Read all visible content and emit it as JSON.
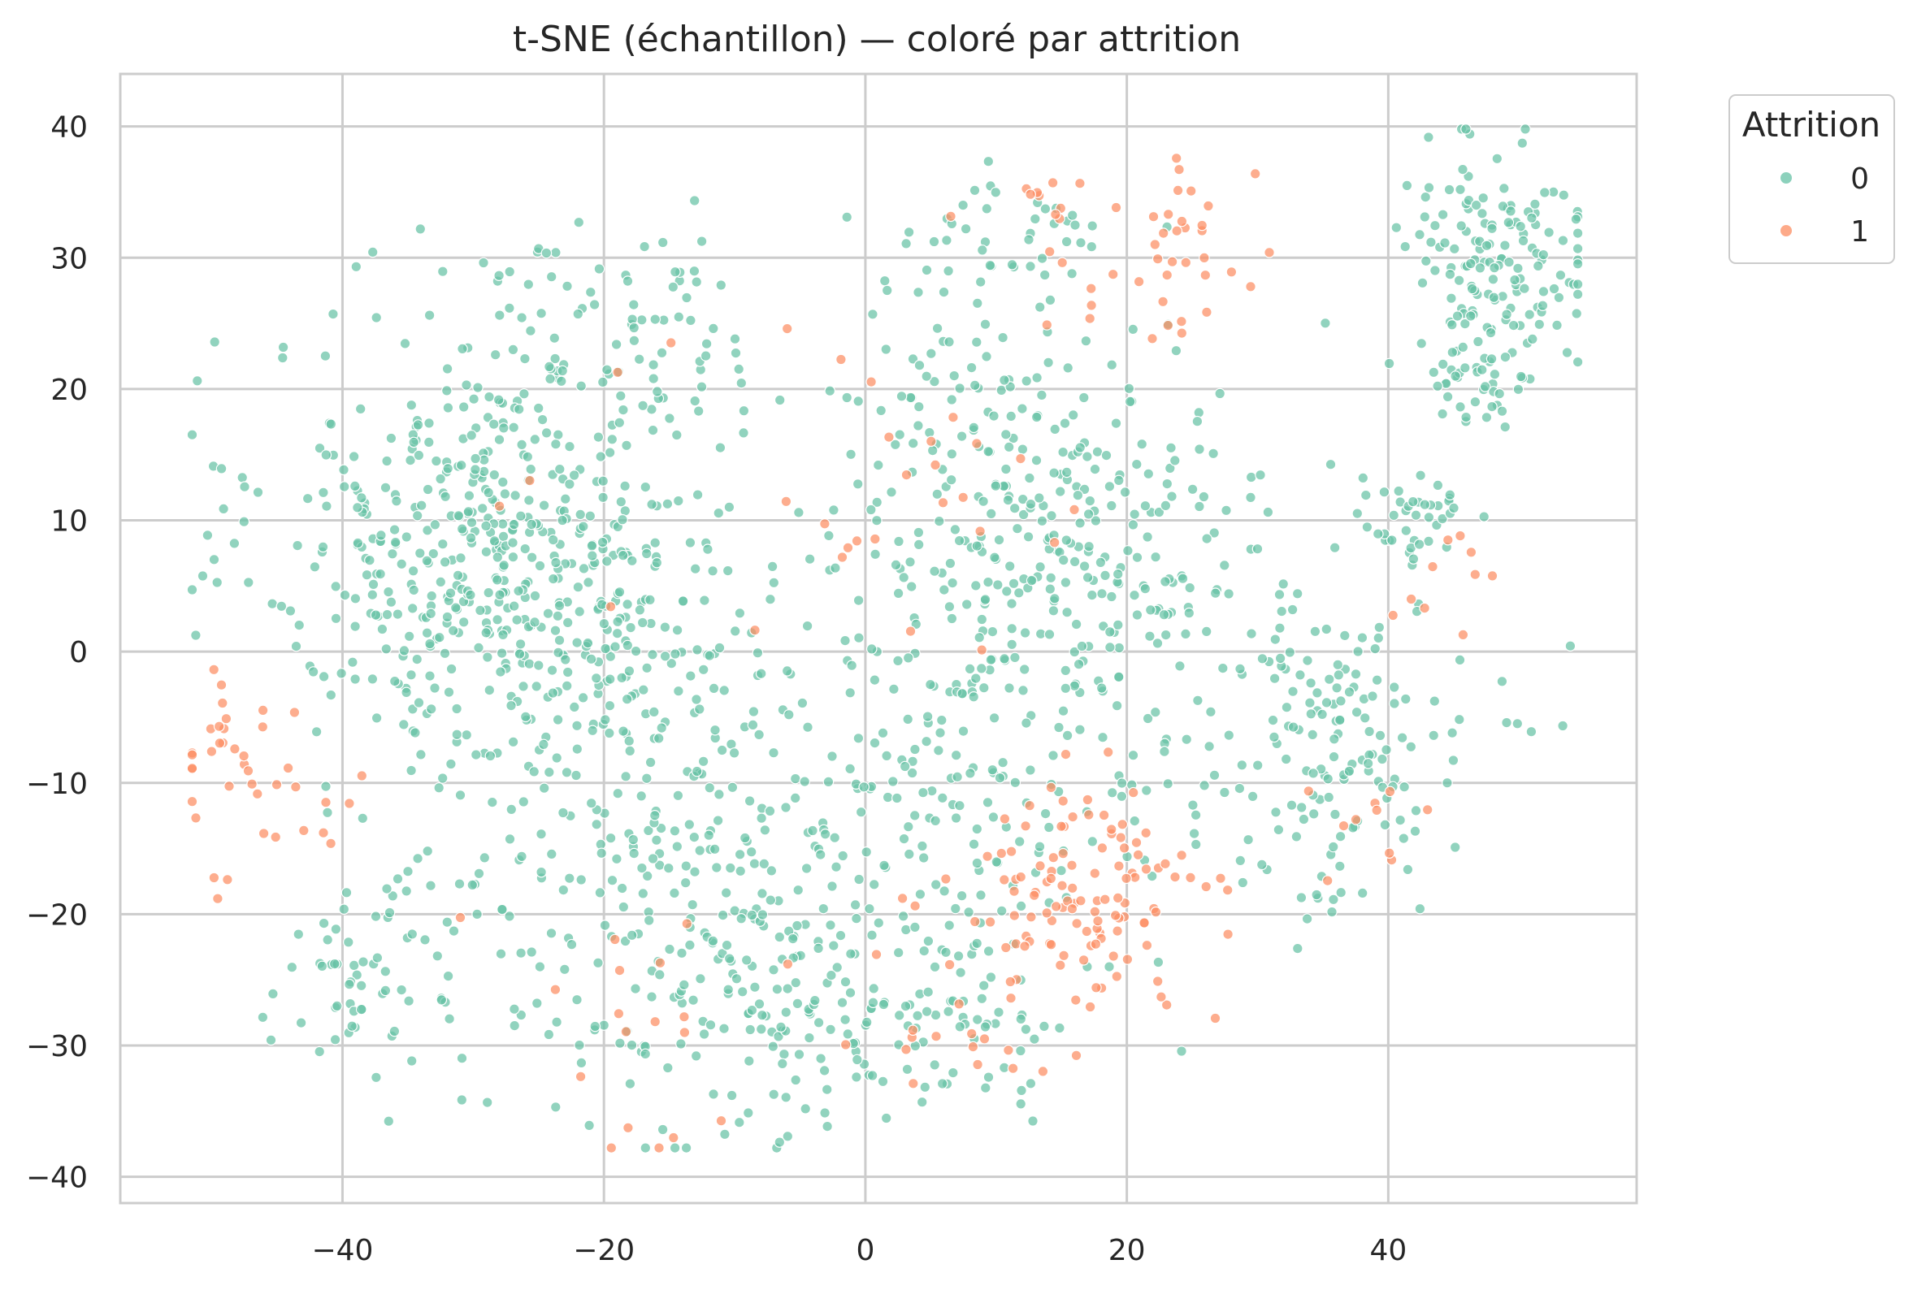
{
  "chart_data": {
    "type": "scatter",
    "title": "t-SNE (échantillon) — coloré par attrition",
    "xlabel": "",
    "ylabel": "",
    "xlim": [
      -57,
      59
    ],
    "ylim": [
      -42,
      44
    ],
    "xticks": [
      -40,
      -20,
      0,
      20,
      40
    ],
    "yticks": [
      40,
      30,
      20,
      10,
      0,
      -10,
      -20,
      -30,
      -40
    ],
    "grid": true,
    "legend": {
      "title": "Attrition",
      "placement": "upper-right-outside"
    },
    "series": [
      {
        "name": "0",
        "color": "#66c2a5",
        "clusters": [
          {
            "cx": -28,
            "cy": 8,
            "sx": 9,
            "sy": 8,
            "n": 520
          },
          {
            "cx": -15,
            "cy": -12,
            "sx": 9,
            "sy": 9,
            "n": 300
          },
          {
            "cx": -6,
            "cy": -28,
            "sx": 8,
            "sy": 5,
            "n": 120
          },
          {
            "cx": -38,
            "cy": -25,
            "sx": 4,
            "sy": 4,
            "n": 70
          },
          {
            "cx": 15,
            "cy": 8,
            "sx": 8,
            "sy": 7,
            "n": 300
          },
          {
            "cx": 8,
            "cy": -12,
            "sx": 7,
            "sy": 7,
            "n": 140
          },
          {
            "cx": 8,
            "cy": -28,
            "sx": 6,
            "sy": 3,
            "n": 60
          },
          {
            "cx": 35,
            "cy": -8,
            "sx": 6,
            "sy": 6,
            "n": 170
          },
          {
            "cx": 48,
            "cy": 30,
            "sx": 4,
            "sy": 5,
            "n": 150
          },
          {
            "cx": 47,
            "cy": 20,
            "sx": 2,
            "sy": 2,
            "n": 40
          },
          {
            "cx": 42,
            "cy": 10,
            "sx": 3,
            "sy": 2,
            "n": 40
          },
          {
            "cx": 10,
            "cy": 31,
            "sx": 5,
            "sy": 3,
            "n": 50
          },
          {
            "cx": -20,
            "cy": 24,
            "sx": 7,
            "sy": 4,
            "n": 80
          },
          {
            "cx": 8,
            "cy": 20,
            "sx": 4,
            "sy": 3,
            "n": 40
          }
        ]
      },
      {
        "name": "1",
        "color": "#fc8d62",
        "clusters": [
          {
            "cx": 16,
            "cy": -19,
            "sx": 5,
            "sy": 4,
            "n": 120
          },
          {
            "cx": 24,
            "cy": 30,
            "sx": 4,
            "sy": 4,
            "n": 40
          },
          {
            "cx": 14,
            "cy": 35,
            "sx": 2,
            "sy": 1,
            "n": 8
          },
          {
            "cx": -46,
            "cy": -10,
            "sx": 4,
            "sy": 4,
            "n": 40
          },
          {
            "cx": 6,
            "cy": 12,
            "sx": 6,
            "sy": 4,
            "n": 20
          },
          {
            "cx": 7,
            "cy": -30,
            "sx": 4,
            "sy": 1.5,
            "n": 14
          },
          {
            "cx": 45,
            "cy": 6,
            "sx": 2,
            "sy": 3,
            "n": 10
          },
          {
            "cx": 39,
            "cy": -11,
            "sx": 2,
            "sy": 3,
            "n": 10
          },
          {
            "cx": -15,
            "cy": -30,
            "sx": 6,
            "sy": 5,
            "n": 16
          },
          {
            "cx": -20,
            "cy": 0,
            "sx": 14,
            "sy": 12,
            "n": 12
          }
        ]
      }
    ]
  }
}
